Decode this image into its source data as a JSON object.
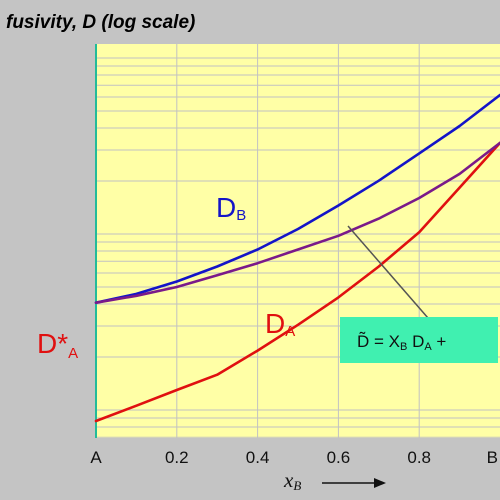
{
  "chart_data": {
    "type": "line",
    "title": "fusivity, D (log scale)",
    "xlabel": "x",
    "xlabel_sub": "B",
    "x_ticks": [
      {
        "value": 0.0,
        "label": "A"
      },
      {
        "value": 0.2,
        "label": "0.2"
      },
      {
        "value": 0.4,
        "label": "0.4"
      },
      {
        "value": 0.6,
        "label": "0.6"
      },
      {
        "value": 0.8,
        "label": "0.8"
      },
      {
        "value": 1.0,
        "label": "B"
      }
    ],
    "xlim": [
      0,
      1
    ],
    "ylim": [
      0,
      1
    ],
    "y_scale": "log",
    "grid": true,
    "series": [
      {
        "name": "D_B",
        "label_main": "D",
        "label_sub": "B",
        "color": "#1414c8",
        "x": [
          0.0,
          0.1,
          0.2,
          0.3,
          0.4,
          0.5,
          0.6,
          0.7,
          0.8,
          0.9,
          1.0
        ],
        "y": [
          0.363,
          0.39,
          0.428,
          0.474,
          0.526,
          0.589,
          0.661,
          0.737,
          0.821,
          0.905,
          1.0
        ]
      },
      {
        "name": "D_A",
        "label_main": "D",
        "label_sub": "A",
        "color": "#e01010",
        "x": [
          0.0,
          0.1,
          0.2,
          0.3,
          0.4,
          0.5,
          0.6,
          0.7,
          0.8,
          0.9,
          1.0
        ],
        "y": [
          0.0,
          0.047,
          0.095,
          0.142,
          0.216,
          0.295,
          0.379,
          0.474,
          0.579,
          0.716,
          0.853
        ]
      },
      {
        "name": "D̃",
        "color": "#7a1a8a",
        "x": [
          0.0,
          0.1,
          0.2,
          0.3,
          0.4,
          0.5,
          0.6,
          0.7,
          0.8,
          0.9,
          1.0
        ],
        "y": [
          0.363,
          0.384,
          0.411,
          0.447,
          0.484,
          0.526,
          0.568,
          0.621,
          0.684,
          0.758,
          0.853
        ]
      }
    ],
    "annotations": {
      "d_star_a": {
        "main": "D*",
        "sub": "A",
        "color": "#e01010"
      },
      "formula": {
        "background": "#40f0b0",
        "parts": [
          "D̃ = X",
          "B",
          " D",
          "A",
          " +"
        ]
      }
    },
    "colors": {
      "plot_background": "#ffffa6",
      "grid": "#c2c2c2",
      "axis": "#22bb99",
      "page_background": "#c4c4c4"
    }
  }
}
